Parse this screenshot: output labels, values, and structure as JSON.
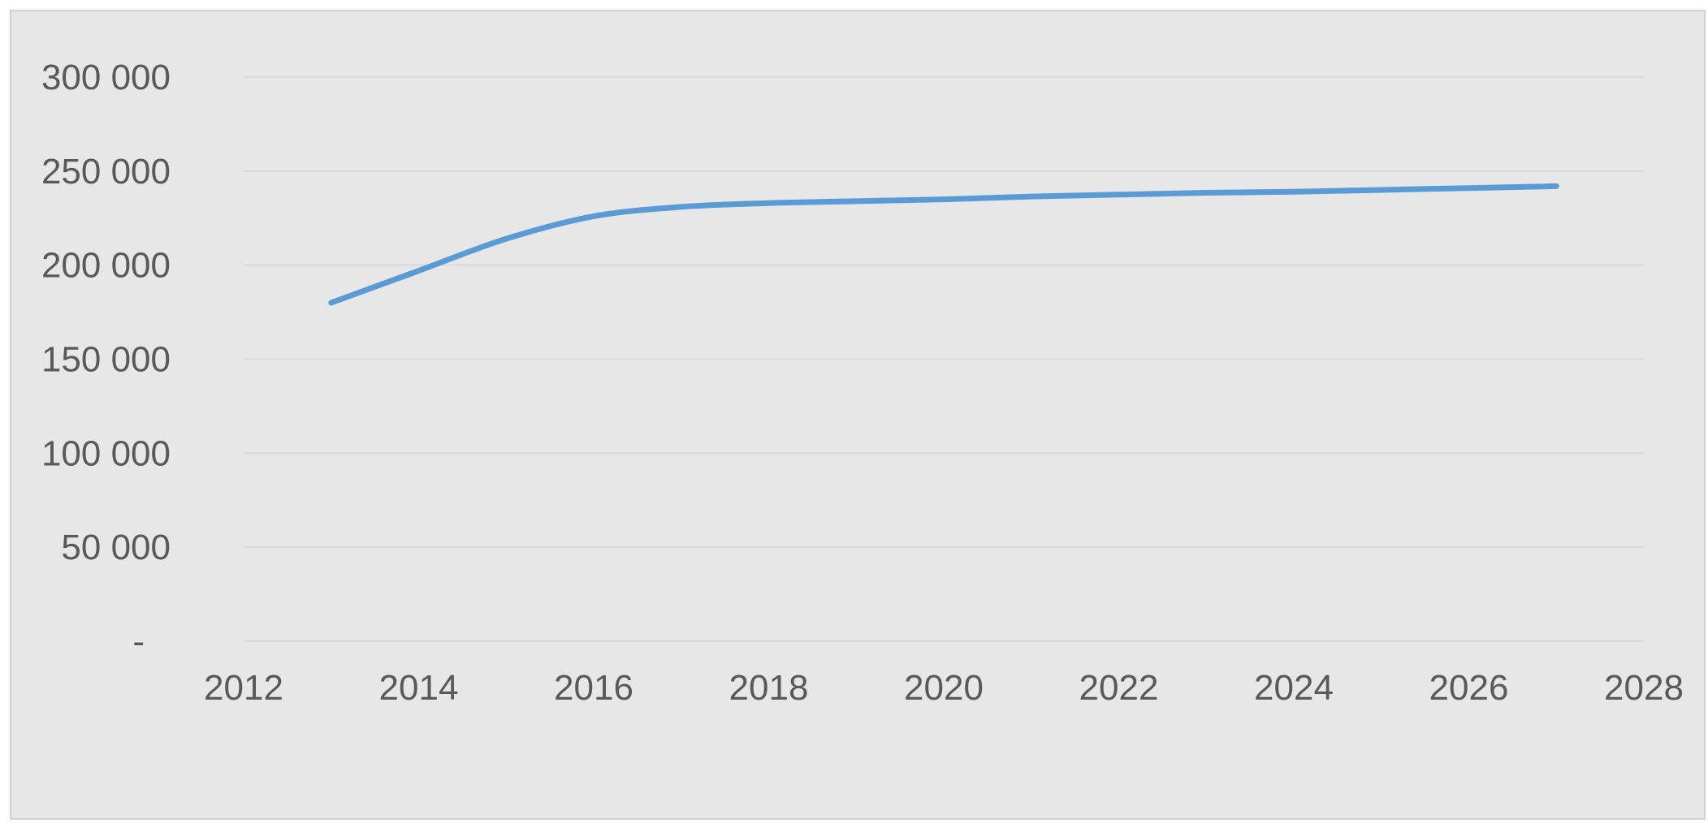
{
  "chart_data": {
    "type": "line",
    "title": "",
    "xlabel": "",
    "ylabel": "",
    "xlim": [
      2012,
      2028
    ],
    "ylim": [
      0,
      300000
    ],
    "x_ticks": [
      2012,
      2014,
      2016,
      2018,
      2020,
      2022,
      2024,
      2026,
      2028
    ],
    "x_tick_labels": [
      "2012",
      "2014",
      "2016",
      "2018",
      "2020",
      "2022",
      "2024",
      "2026",
      "2028"
    ],
    "y_ticks": [
      0,
      50000,
      100000,
      150000,
      200000,
      250000,
      300000
    ],
    "y_tick_labels": [
      "-",
      "50 000",
      "100 000",
      "150 000",
      "200 000",
      "250 000",
      "300 000"
    ],
    "grid": "horizontal",
    "legend": "none",
    "series": [
      {
        "color": "#5b9bd5",
        "smooth": true,
        "x": [
          2013,
          2014,
          2015,
          2016,
          2017,
          2018,
          2019,
          2020,
          2021,
          2022,
          2023,
          2024,
          2025,
          2026,
          2027
        ],
        "values": [
          180000,
          197000,
          214000,
          226000,
          231000,
          233000,
          234000,
          235000,
          236500,
          237500,
          238500,
          239000,
          240000,
          241000,
          242000
        ]
      }
    ]
  }
}
